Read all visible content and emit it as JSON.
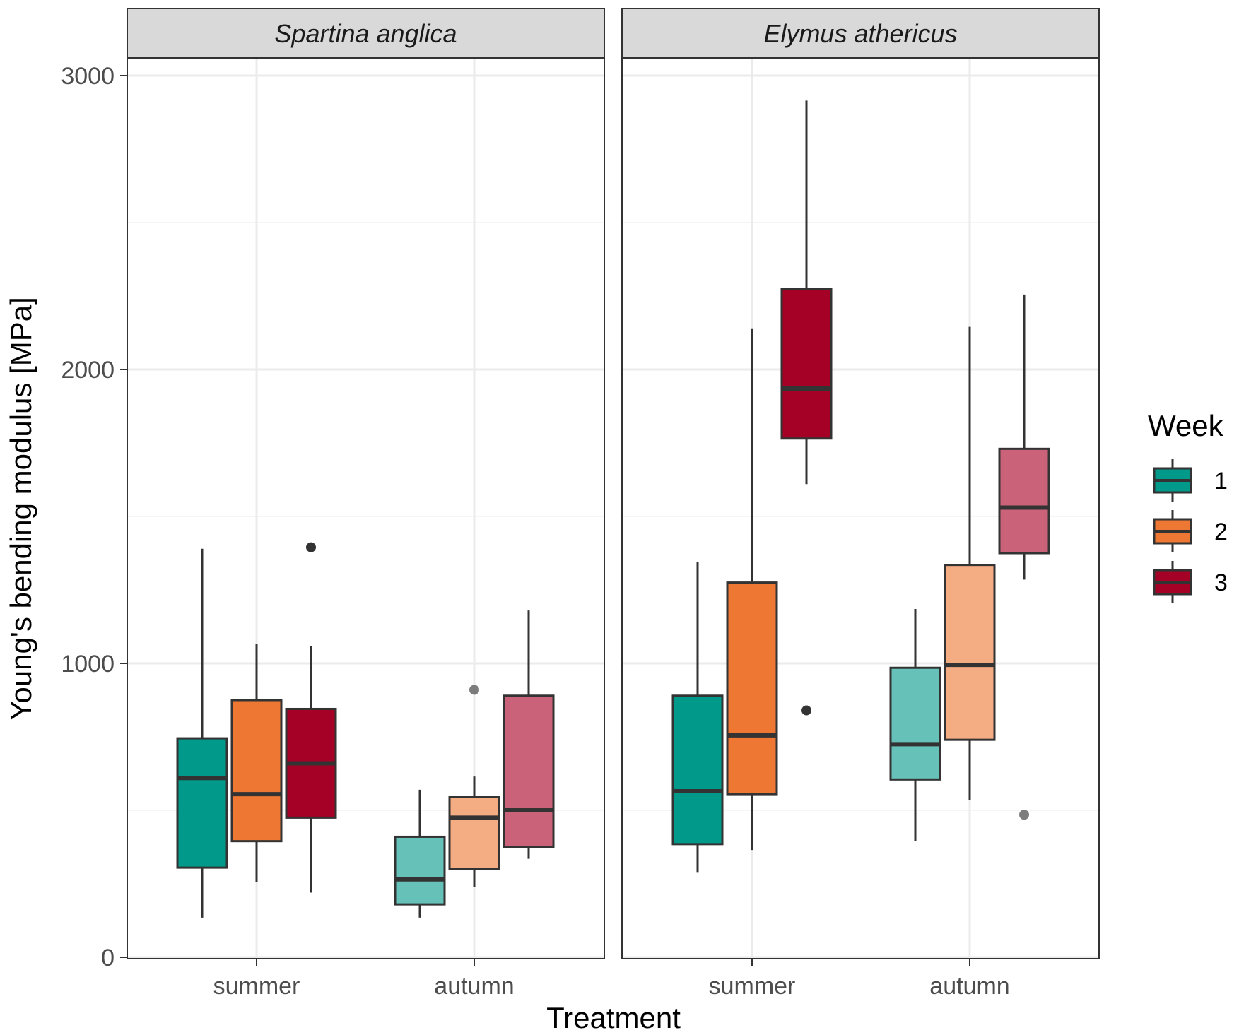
{
  "chart_data": {
    "type": "boxplot",
    "facets": [
      "Spartina anglica",
      "Elymus athericus"
    ],
    "categories": [
      "summer",
      "autumn"
    ],
    "xlabel": "Treatment",
    "ylabel": "Young's bending modulus [MPa]",
    "ylim": [
      0,
      3000
    ],
    "y_ticks": [
      "0",
      "1000",
      "2000",
      "3000"
    ],
    "grid": true,
    "legend": {
      "title": "Week",
      "placement": "right",
      "entries": [
        {
          "label": "1",
          "color": "#00998a"
        },
        {
          "label": "2",
          "color": "#ee7733"
        },
        {
          "label": "3",
          "color": "#a50026"
        }
      ]
    },
    "boxes": [
      {
        "facet": 0,
        "treatment": "summer",
        "week": 1,
        "whisker_low": 135,
        "q1": 305,
        "median": 610,
        "q3": 745,
        "whisker_high": 1390,
        "outliers": [],
        "fill": "#00998a"
      },
      {
        "facet": 0,
        "treatment": "summer",
        "week": 2,
        "whisker_low": 255,
        "q1": 395,
        "median": 555,
        "q3": 875,
        "whisker_high": 1065,
        "outliers": [],
        "fill": "#ee7733"
      },
      {
        "facet": 0,
        "treatment": "summer",
        "week": 3,
        "whisker_low": 220,
        "q1": 475,
        "median": 660,
        "q3": 845,
        "whisker_high": 1060,
        "outliers": [
          1395
        ],
        "fill": "#a50026"
      },
      {
        "facet": 0,
        "treatment": "autumn",
        "week": 1,
        "whisker_low": 135,
        "q1": 180,
        "median": 265,
        "q3": 410,
        "whisker_high": 570,
        "outliers": [],
        "fill": "#66c2b8"
      },
      {
        "facet": 0,
        "treatment": "autumn",
        "week": 2,
        "whisker_low": 240,
        "q1": 300,
        "median": 475,
        "q3": 545,
        "whisker_high": 615,
        "outliers": [
          910
        ],
        "fill": "#f4ac82"
      },
      {
        "facet": 0,
        "treatment": "autumn",
        "week": 3,
        "whisker_low": 335,
        "q1": 375,
        "median": 500,
        "q3": 890,
        "whisker_high": 1180,
        "outliers": [],
        "fill": "#ca637a"
      },
      {
        "facet": 1,
        "treatment": "summer",
        "week": 1,
        "whisker_low": 290,
        "q1": 385,
        "median": 565,
        "q3": 890,
        "whisker_high": 1345,
        "outliers": [],
        "fill": "#00998a"
      },
      {
        "facet": 1,
        "treatment": "summer",
        "week": 2,
        "whisker_low": 365,
        "q1": 555,
        "median": 755,
        "q3": 1275,
        "whisker_high": 2140,
        "outliers": [],
        "fill": "#ee7733"
      },
      {
        "facet": 1,
        "treatment": "summer",
        "week": 3,
        "whisker_low": 1610,
        "q1": 1765,
        "median": 1935,
        "q3": 2275,
        "whisker_high": 2915,
        "outliers": [
          840
        ],
        "fill": "#a50026"
      },
      {
        "facet": 1,
        "treatment": "autumn",
        "week": 1,
        "whisker_low": 395,
        "q1": 605,
        "median": 725,
        "q3": 985,
        "whisker_high": 1185,
        "outliers": [],
        "fill": "#66c2b8"
      },
      {
        "facet": 1,
        "treatment": "autumn",
        "week": 2,
        "whisker_low": 535,
        "q1": 740,
        "median": 995,
        "q3": 1335,
        "whisker_high": 2145,
        "outliers": [],
        "fill": "#f4ac82"
      },
      {
        "facet": 1,
        "treatment": "autumn",
        "week": 3,
        "whisker_low": 1285,
        "q1": 1375,
        "median": 1530,
        "q3": 1730,
        "whisker_high": 2255,
        "outliers": [
          485
        ],
        "fill": "#ca637a"
      }
    ]
  }
}
